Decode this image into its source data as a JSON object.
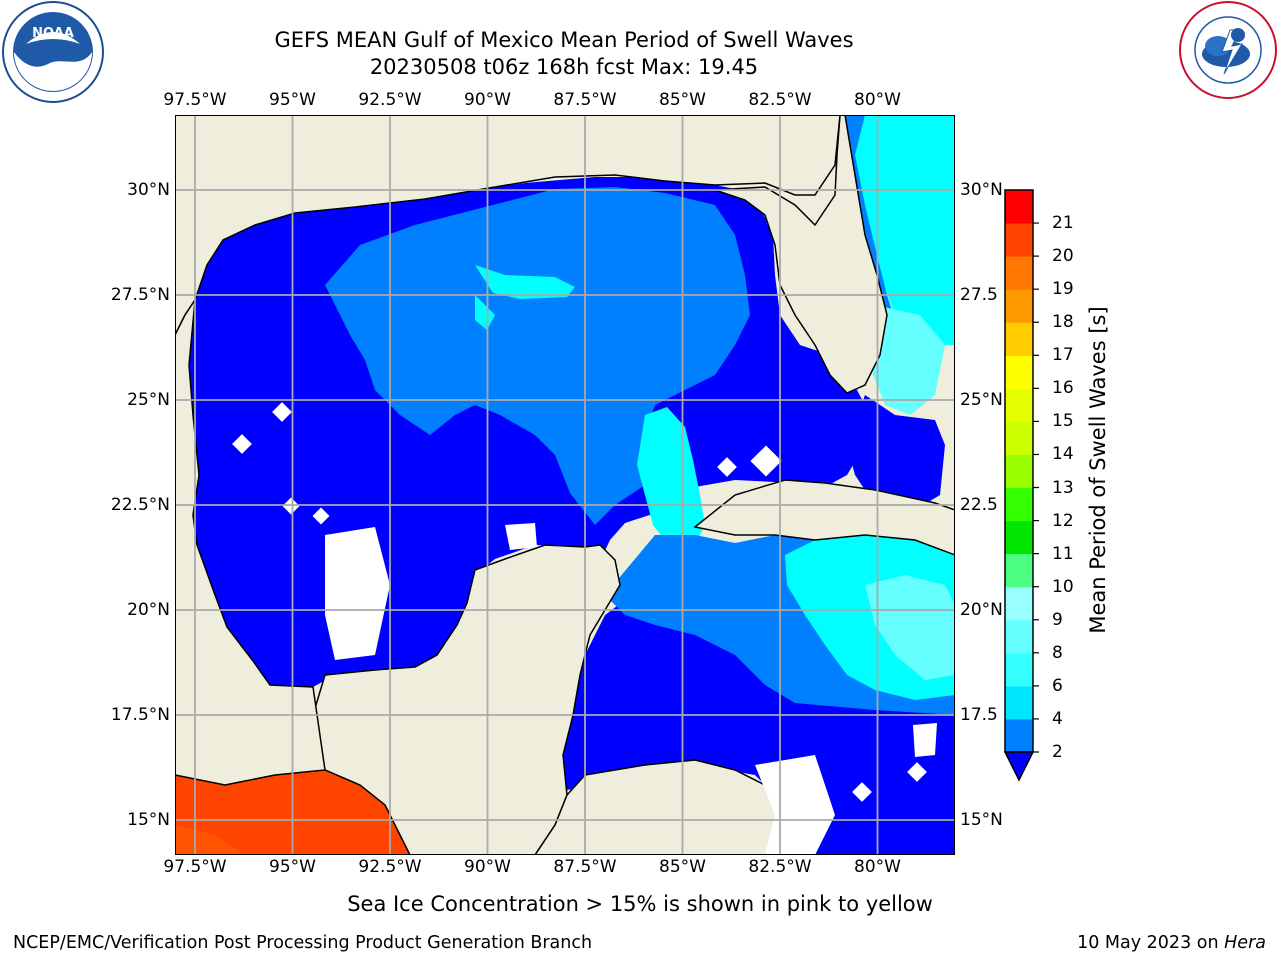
{
  "title": {
    "line1": "GEFS MEAN Gulf of Mexico Mean Period of Swell Waves",
    "line2": "20230508 t06z 168h fcst   Max: 19.45"
  },
  "map": {
    "lon_labels": [
      "97.5°W",
      "95°W",
      "92.5°W",
      "90°W",
      "87.5°W",
      "85°W",
      "82.5°W",
      "80°W"
    ],
    "lat_labels_left": [
      "30°N",
      "27.5°N",
      "25°N",
      "22.5°N",
      "20°N",
      "17.5°N",
      "15°N"
    ],
    "lat_labels_right": [
      "30°N",
      "27.5",
      "25°N",
      "22.5",
      "20°N",
      "17.5",
      "15°N"
    ],
    "lon_range": [
      -98,
      -78.25
    ],
    "lat_range": [
      14,
      31.5
    ],
    "land_color": "#efeedc",
    "ocean_nodata_color": "#ffffff",
    "gridlines": true
  },
  "colorbar": {
    "label": "Mean Period of Swell Waves [s]",
    "ticks": [
      "2",
      "4",
      "6",
      "8",
      "9",
      "10",
      "11",
      "12",
      "13",
      "14",
      "15",
      "16",
      "17",
      "18",
      "19",
      "20",
      "21"
    ],
    "colors": [
      "#0080ff",
      "#00e6ff",
      "#33ffff",
      "#66ffff",
      "#99ffff",
      "#4dff80",
      "#00e600",
      "#33ff00",
      "#99ff00",
      "#ccff00",
      "#e6ff00",
      "#ffff00",
      "#ffcc00",
      "#ff9900",
      "#ff7700",
      "#ff4400",
      "#ff0000"
    ],
    "extend_below_color": "#0000ff"
  },
  "field_levels": {
    "level_2_4": "#0000ff",
    "level_4_6": "#0080ff",
    "level_6_8": "#00ffff",
    "level_8_9": "#66ffff",
    "level_19_20": "#ff4400",
    "level_20_21": "#ff3300"
  },
  "note": "Sea Ice Concentration > 15% is shown in pink to yellow",
  "footer": {
    "left": "NCEP/EMC/Verification Post Processing Product Generation Branch",
    "right_date": "10 May 2023 on ",
    "right_machine": "Hera"
  },
  "logos": {
    "left": "noaa-logo",
    "right": "nws-logo"
  }
}
